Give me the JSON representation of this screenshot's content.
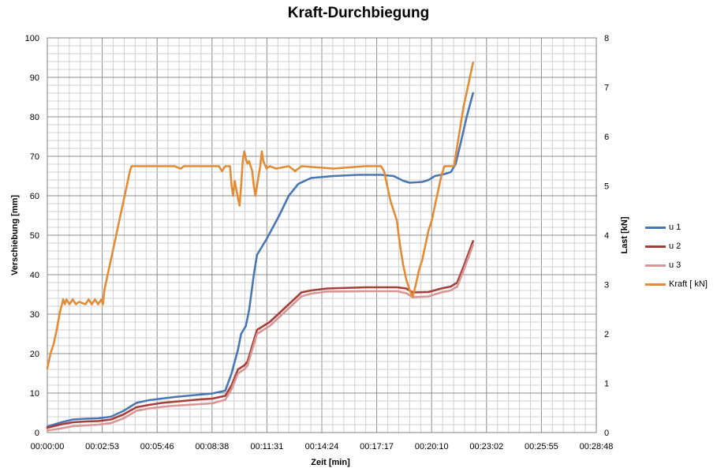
{
  "chart_data": {
    "type": "line",
    "title": "Kraft-Durchbiegung",
    "xlabel": "Zeit [min]",
    "ylabel": "Verschiebung [mm]",
    "y2label": "Last [kN]",
    "x_unit": "seconds",
    "x_range": [
      0,
      1728
    ],
    "ylim": [
      0,
      100
    ],
    "y2lim": [
      0,
      8
    ],
    "x_tick_labels": [
      "00:00:00",
      "00:02:53",
      "00:05:46",
      "00:08:38",
      "00:11:31",
      "00:14:24",
      "00:17:17",
      "00:20:10",
      "00:23:02",
      "00:25:55",
      "00:28:48"
    ],
    "y_ticks": [
      0,
      10,
      20,
      30,
      40,
      50,
      60,
      70,
      80,
      90,
      100
    ],
    "y2_ticks": [
      0,
      1,
      2,
      3,
      4,
      5,
      6,
      7,
      8
    ],
    "grid": true,
    "legend_position": "right",
    "series": [
      {
        "name": "u 1",
        "axis": "left",
        "color": "#4a77b4",
        "points": [
          [
            0,
            1.5
          ],
          [
            40,
            2.5
          ],
          [
            80,
            3.3
          ],
          [
            120,
            3.5
          ],
          [
            160,
            3.6
          ],
          [
            200,
            4
          ],
          [
            240,
            5.5
          ],
          [
            280,
            7.5
          ],
          [
            320,
            8.2
          ],
          [
            360,
            8.6
          ],
          [
            400,
            9
          ],
          [
            440,
            9.3
          ],
          [
            480,
            9.6
          ],
          [
            520,
            9.9
          ],
          [
            560,
            10.6
          ],
          [
            580,
            15
          ],
          [
            600,
            21
          ],
          [
            610,
            25
          ],
          [
            625,
            27
          ],
          [
            635,
            31
          ],
          [
            650,
            40
          ],
          [
            660,
            45
          ],
          [
            690,
            49
          ],
          [
            730,
            55
          ],
          [
            760,
            60
          ],
          [
            790,
            63
          ],
          [
            830,
            64.5
          ],
          [
            900,
            65
          ],
          [
            980,
            65.3
          ],
          [
            1050,
            65.3
          ],
          [
            1090,
            65
          ],
          [
            1120,
            63.8
          ],
          [
            1140,
            63.3
          ],
          [
            1180,
            63.5
          ],
          [
            1200,
            64
          ],
          [
            1220,
            65
          ],
          [
            1250,
            65.5
          ],
          [
            1270,
            66
          ],
          [
            1285,
            68
          ],
          [
            1300,
            73
          ],
          [
            1320,
            80
          ],
          [
            1340,
            86
          ]
        ]
      },
      {
        "name": "u 2",
        "axis": "left",
        "color": "#a63e3a",
        "points": [
          [
            0,
            1.2
          ],
          [
            40,
            2
          ],
          [
            80,
            2.6
          ],
          [
            120,
            2.8
          ],
          [
            160,
            2.9
          ],
          [
            200,
            3.3
          ],
          [
            240,
            4.6
          ],
          [
            280,
            6.4
          ],
          [
            320,
            7
          ],
          [
            360,
            7.5
          ],
          [
            400,
            7.8
          ],
          [
            440,
            8.1
          ],
          [
            480,
            8.4
          ],
          [
            520,
            8.6
          ],
          [
            560,
            9.3
          ],
          [
            580,
            12
          ],
          [
            600,
            16
          ],
          [
            620,
            17
          ],
          [
            630,
            18
          ],
          [
            645,
            22
          ],
          [
            660,
            26
          ],
          [
            700,
            28
          ],
          [
            740,
            31
          ],
          [
            780,
            34
          ],
          [
            800,
            35.5
          ],
          [
            830,
            36
          ],
          [
            880,
            36.5
          ],
          [
            1000,
            36.8
          ],
          [
            1100,
            36.8
          ],
          [
            1130,
            36.5
          ],
          [
            1150,
            35.5
          ],
          [
            1200,
            35.6
          ],
          [
            1240,
            36.5
          ],
          [
            1270,
            37
          ],
          [
            1290,
            38
          ],
          [
            1310,
            42
          ],
          [
            1340,
            48.5
          ]
        ]
      },
      {
        "name": "u 3",
        "axis": "left",
        "color": "#d99694",
        "points": [
          [
            0,
            0.5
          ],
          [
            40,
            1
          ],
          [
            80,
            1.6
          ],
          [
            120,
            1.8
          ],
          [
            160,
            2
          ],
          [
            200,
            2.4
          ],
          [
            240,
            3.6
          ],
          [
            280,
            5.5
          ],
          [
            320,
            6.1
          ],
          [
            360,
            6.5
          ],
          [
            400,
            6.8
          ],
          [
            440,
            7
          ],
          [
            480,
            7.2
          ],
          [
            520,
            7.4
          ],
          [
            560,
            8.3
          ],
          [
            580,
            11
          ],
          [
            600,
            15
          ],
          [
            620,
            16
          ],
          [
            630,
            17
          ],
          [
            645,
            21
          ],
          [
            660,
            25
          ],
          [
            700,
            27
          ],
          [
            740,
            30
          ],
          [
            780,
            33
          ],
          [
            800,
            34.5
          ],
          [
            830,
            35.2
          ],
          [
            880,
            35.7
          ],
          [
            1000,
            35.8
          ],
          [
            1100,
            35.8
          ],
          [
            1130,
            35.3
          ],
          [
            1150,
            34.3
          ],
          [
            1200,
            34.5
          ],
          [
            1240,
            35.5
          ],
          [
            1270,
            36
          ],
          [
            1290,
            37
          ],
          [
            1310,
            41
          ],
          [
            1340,
            47.5
          ]
        ]
      },
      {
        "name": "Kraft [ kN]",
        "axis": "right",
        "color": "#e38c35",
        "points": [
          [
            0,
            1.3
          ],
          [
            10,
            1.6
          ],
          [
            20,
            1.8
          ],
          [
            30,
            2.1
          ],
          [
            40,
            2.45
          ],
          [
            50,
            2.7
          ],
          [
            55,
            2.6
          ],
          [
            60,
            2.7
          ],
          [
            70,
            2.6
          ],
          [
            80,
            2.7
          ],
          [
            90,
            2.6
          ],
          [
            100,
            2.65
          ],
          [
            120,
            2.6
          ],
          [
            130,
            2.7
          ],
          [
            140,
            2.6
          ],
          [
            150,
            2.7
          ],
          [
            160,
            2.6
          ],
          [
            170,
            2.7
          ],
          [
            175,
            2.6
          ],
          [
            180,
            2.9
          ],
          [
            190,
            3.2
          ],
          [
            200,
            3.5
          ],
          [
            210,
            3.8
          ],
          [
            220,
            4.1
          ],
          [
            230,
            4.4
          ],
          [
            240,
            4.7
          ],
          [
            250,
            5
          ],
          [
            260,
            5.3
          ],
          [
            265,
            5.4
          ],
          [
            300,
            5.4
          ],
          [
            400,
            5.4
          ],
          [
            420,
            5.35
          ],
          [
            430,
            5.4
          ],
          [
            540,
            5.4
          ],
          [
            550,
            5.3
          ],
          [
            560,
            5.4
          ],
          [
            575,
            5.4
          ],
          [
            580,
            5.0
          ],
          [
            585,
            4.8
          ],
          [
            590,
            5.1
          ],
          [
            600,
            4.75
          ],
          [
            605,
            4.6
          ],
          [
            610,
            5.0
          ],
          [
            615,
            5.5
          ],
          [
            620,
            5.7
          ],
          [
            625,
            5.55
          ],
          [
            630,
            5.45
          ],
          [
            635,
            5.5
          ],
          [
            645,
            5.3
          ],
          [
            650,
            5.0
          ],
          [
            655,
            4.8
          ],
          [
            660,
            5.0
          ],
          [
            670,
            5.4
          ],
          [
            675,
            5.7
          ],
          [
            680,
            5.5
          ],
          [
            690,
            5.35
          ],
          [
            700,
            5.4
          ],
          [
            720,
            5.35
          ],
          [
            760,
            5.4
          ],
          [
            780,
            5.3
          ],
          [
            800,
            5.4
          ],
          [
            900,
            5.35
          ],
          [
            1000,
            5.4
          ],
          [
            1050,
            5.4
          ],
          [
            1060,
            5.3
          ],
          [
            1080,
            4.7
          ],
          [
            1100,
            4.3
          ],
          [
            1110,
            3.8
          ],
          [
            1120,
            3.4
          ],
          [
            1130,
            3.1
          ],
          [
            1140,
            2.9
          ],
          [
            1150,
            2.75
          ],
          [
            1160,
            3.0
          ],
          [
            1170,
            3.3
          ],
          [
            1180,
            3.5
          ],
          [
            1190,
            3.8
          ],
          [
            1200,
            4.1
          ],
          [
            1210,
            4.3
          ],
          [
            1220,
            4.6
          ],
          [
            1230,
            4.9
          ],
          [
            1240,
            5.2
          ],
          [
            1250,
            5.4
          ],
          [
            1280,
            5.4
          ],
          [
            1290,
            5.8
          ],
          [
            1300,
            6.2
          ],
          [
            1310,
            6.6
          ],
          [
            1320,
            6.9
          ],
          [
            1330,
            7.2
          ],
          [
            1340,
            7.5
          ]
        ]
      }
    ]
  }
}
